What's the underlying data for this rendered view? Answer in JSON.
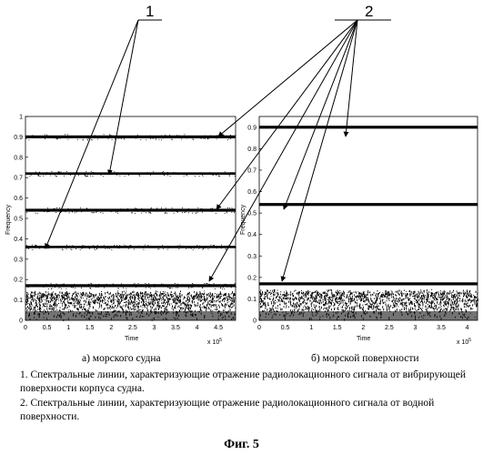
{
  "figure": {
    "callouts": [
      "1",
      "2"
    ],
    "panels": [
      {
        "id": "a",
        "ylabel": "Frequency",
        "xlabel": "Time",
        "x_exponent": "x 10",
        "x_exponent_power": "5",
        "x_ticks": [
          "0",
          "0.5",
          "1",
          "1.5",
          "2",
          "2.5",
          "3",
          "3.5",
          "4",
          "4.5"
        ],
        "y_ticks": [
          "0",
          "0.1",
          "0.2",
          "0.3",
          "0.4",
          "0.5",
          "0.6",
          "0.7",
          "0.8",
          "0.9",
          "1"
        ],
        "caption": "а) морского судна"
      },
      {
        "id": "b",
        "ylabel": "Frequency",
        "xlabel": "Time",
        "x_exponent": "x 10",
        "x_exponent_power": "5",
        "x_ticks": [
          "0",
          "0.5",
          "1",
          "1.5",
          "2",
          "2.5",
          "3",
          "3.5",
          "4"
        ],
        "y_ticks": [
          "0",
          "0.1",
          "0.2",
          "0.3",
          "0.4",
          "0.5",
          "0.6",
          "0.7",
          "0.8",
          "0.9"
        ],
        "caption": "б) морской поверхности"
      }
    ],
    "notes": [
      "1.  Спектральные линии, характеризующие отражение радиолокационного сигнала от вибрирующей поверхности корпуса судна.",
      "2.  Спектральные линии, характеризующие отражение радиолокационного сигнала от водной поверхности."
    ],
    "title": "Фиг. 5"
  },
  "chart_data": [
    {
      "type": "heatmap",
      "xlabel": "Time",
      "ylabel": "Frequency",
      "x_scale": "x 10^5",
      "xlim": [
        0,
        4.9
      ],
      "ylim": [
        0,
        1
      ],
      "x_ticks": [
        0,
        0.5,
        1,
        1.5,
        2,
        2.5,
        3,
        3.5,
        4,
        4.5
      ],
      "y_ticks": [
        0,
        0.1,
        0.2,
        0.3,
        0.4,
        0.5,
        0.6,
        0.7,
        0.8,
        0.9,
        1
      ],
      "spectral_lines": [
        0.9,
        0.72,
        0.54,
        0.36,
        0.17
      ],
      "noise_band": [
        0,
        0.13
      ],
      "color": "#000000"
    },
    {
      "type": "heatmap",
      "xlabel": "Time",
      "ylabel": "Frequency",
      "x_scale": "x 10^5",
      "xlim": [
        0,
        4.2
      ],
      "ylim": [
        0,
        0.95
      ],
      "x_ticks": [
        0,
        0.5,
        1,
        1.5,
        2,
        2.5,
        3,
        3.5,
        4
      ],
      "y_ticks": [
        0,
        0.1,
        0.2,
        0.3,
        0.4,
        0.5,
        0.6,
        0.7,
        0.8,
        0.9
      ],
      "spectral_lines": [
        0.9,
        0.54,
        0.17
      ],
      "noise_band": [
        0,
        0.13
      ],
      "color": "#000000"
    }
  ]
}
